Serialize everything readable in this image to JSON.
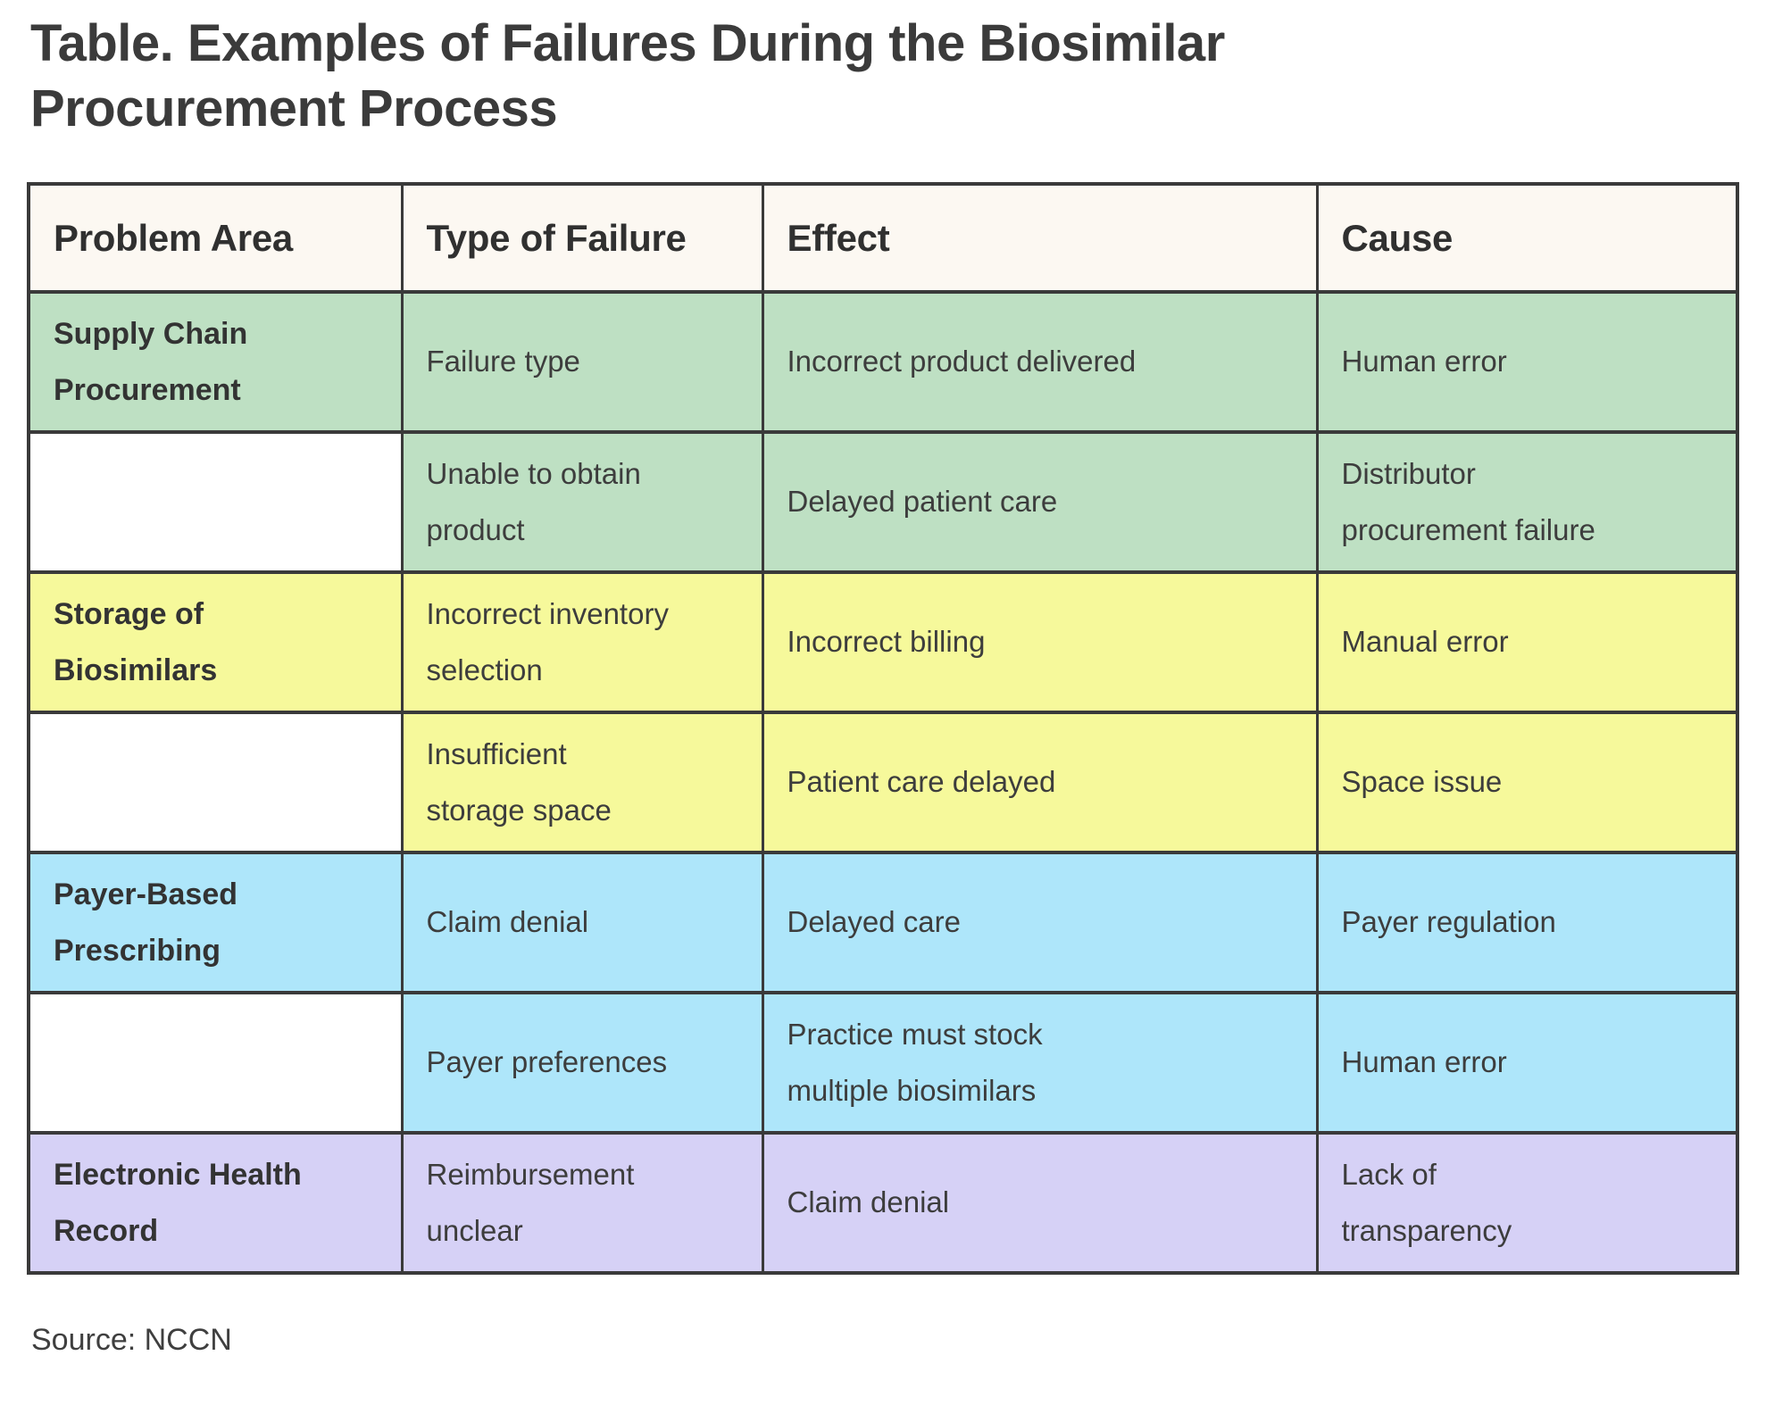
{
  "title": "Table. Examples of Failures During the Biosimilar\nProcurement Process",
  "source": "Source: NCCN",
  "colors": {
    "title_text": "#3b3b3b",
    "border": "#3a3a3a",
    "header_bg": "#fcf8f2",
    "green": "#bee0c3",
    "yellow": "#f6f99b",
    "blue": "#aee6fa",
    "purple": "#d6d1f6"
  },
  "table": {
    "columns": [
      "Problem Area",
      "Type of Failure",
      "Effect",
      "Cause"
    ],
    "rows": [
      {
        "group": "green",
        "problem_area": "Supply Chain\nProcurement",
        "type_of_failure": "Failure type",
        "effect": "Incorrect product delivered",
        "cause": "Human error"
      },
      {
        "group": "green",
        "problem_area": "",
        "type_of_failure": "Unable to obtain\nproduct",
        "effect": "Delayed patient care",
        "cause": "Distributor\nprocurement failure"
      },
      {
        "group": "yellow",
        "problem_area": "Storage of\nBiosimilars",
        "type_of_failure": "Incorrect inventory\nselection",
        "effect": "Incorrect billing",
        "cause": "Manual error"
      },
      {
        "group": "yellow",
        "problem_area": "",
        "type_of_failure": "Insufficient\nstorage space",
        "effect": "Patient care delayed",
        "cause": "Space issue"
      },
      {
        "group": "blue",
        "problem_area": "Payer-Based\nPrescribing",
        "type_of_failure": "Claim denial",
        "effect": "Delayed care",
        "cause": "Payer regulation"
      },
      {
        "group": "blue",
        "problem_area": "",
        "type_of_failure": "Payer preferences",
        "effect": "Practice must stock\nmultiple biosimilars",
        "cause": "Human error"
      },
      {
        "group": "purple",
        "problem_area": "Electronic Health\nRecord",
        "type_of_failure": "Reimbursement\nunclear",
        "effect": "Claim denial",
        "cause": "Lack of\ntransparency"
      }
    ]
  },
  "chart_data": {
    "type": "table",
    "title": "Table. Examples of Failures During the Biosimilar Procurement Process",
    "columns": [
      "Problem Area",
      "Type of Failure",
      "Effect",
      "Cause"
    ],
    "rows": [
      [
        "Supply Chain Procurement",
        "Failure type",
        "Incorrect product delivered",
        "Human error"
      ],
      [
        "",
        "Unable to obtain product",
        "Delayed patient care",
        "Distributor procurement failure"
      ],
      [
        "Storage of Biosimilars",
        "Incorrect inventory selection",
        "Incorrect billing",
        "Manual error"
      ],
      [
        "",
        "Insufficient storage space",
        "Patient care delayed",
        "Space issue"
      ],
      [
        "Payer-Based Prescribing",
        "Claim denial",
        "Delayed care",
        "Payer regulation"
      ],
      [
        "",
        "Payer preferences",
        "Practice must stock multiple biosimilars",
        "Human error"
      ],
      [
        "Electronic Health Record",
        "Reimbursement unclear",
        "Claim denial",
        "Lack of transparency"
      ]
    ],
    "row_groups": [
      "green",
      "green",
      "yellow",
      "yellow",
      "blue",
      "blue",
      "purple"
    ],
    "source": "Source: NCCN",
    "legend_position": "none",
    "grid": true
  }
}
